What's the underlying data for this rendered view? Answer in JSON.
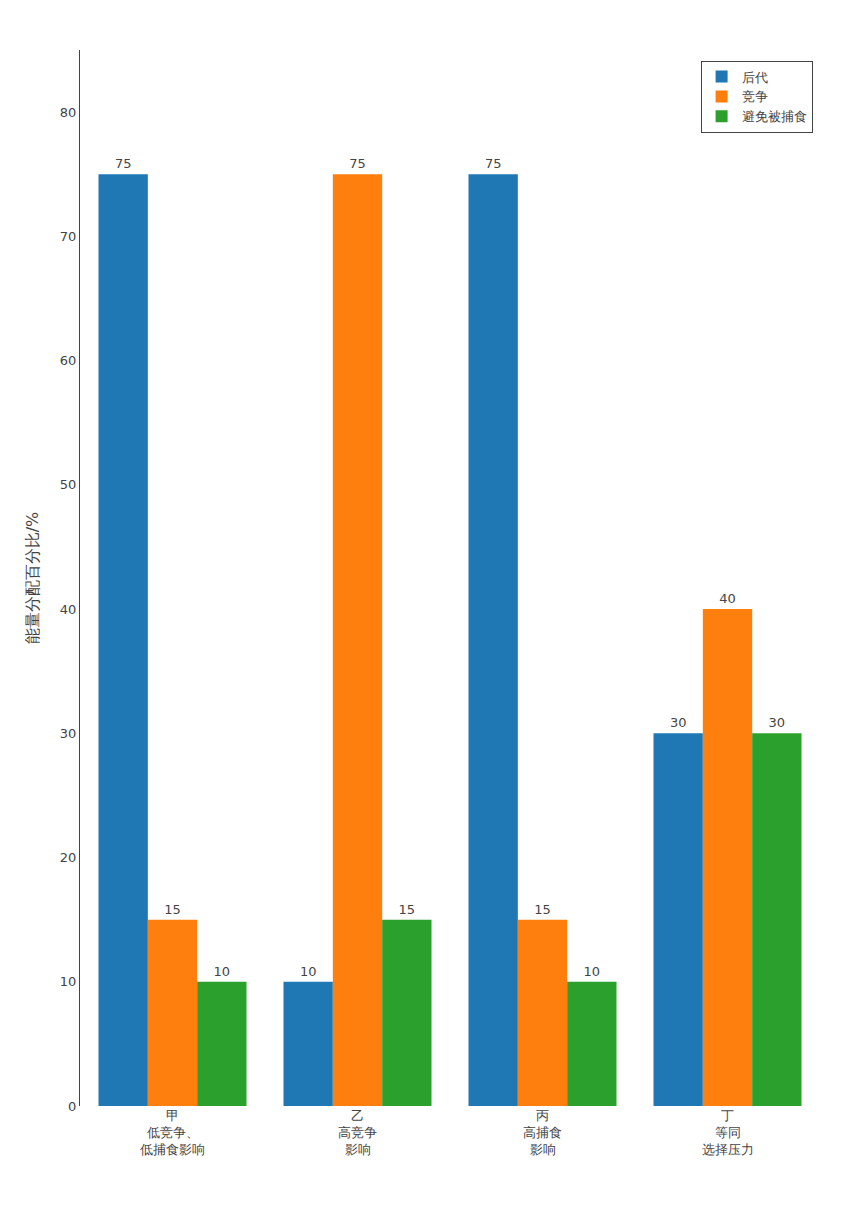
{
  "chart_data": {
    "type": "bar",
    "categories": [
      "甲\n低竞争、\n低捕食影响",
      "乙\n高竞争\n影响",
      "丙\n高捕食\n影响",
      "丁\n等同\n选择压力"
    ],
    "series": [
      {
        "name": "后代",
        "values": [
          75,
          10,
          75,
          30
        ]
      },
      {
        "name": "竞争",
        "values": [
          15,
          75,
          15,
          40
        ]
      },
      {
        "name": "避免被捕食",
        "values": [
          10,
          15,
          10,
          30
        ]
      }
    ],
    "y_label": "能量分配百分比/%",
    "ylim": [
      0,
      85
    ],
    "yticks": [
      0,
      10,
      20,
      30,
      40,
      50,
      60,
      70,
      80
    ],
    "data_labels": true,
    "legend": "upper right",
    "grid": false
  }
}
